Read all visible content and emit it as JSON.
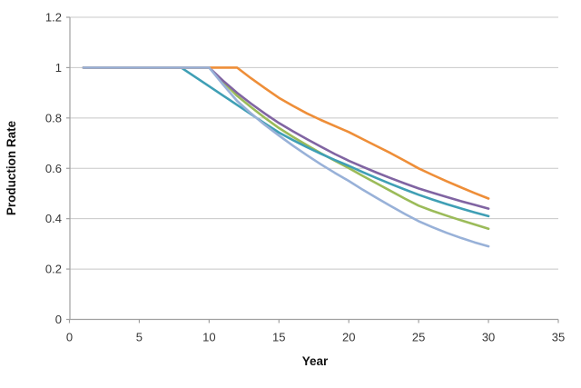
{
  "chart_data": {
    "type": "line",
    "title": "",
    "xlabel": "Year",
    "ylabel": "Production Rate",
    "xlim": [
      0,
      35
    ],
    "ylim": [
      0,
      1.2
    ],
    "x_ticks": [
      0,
      5,
      10,
      15,
      20,
      25,
      30,
      35
    ],
    "x_tick_labels": [
      "0",
      "5",
      "10",
      "15",
      "20",
      "25",
      "30",
      "35"
    ],
    "y_ticks": [
      0,
      0.2,
      0.4,
      0.6,
      0.8,
      1,
      1.2
    ],
    "y_tick_labels": [
      "0",
      "0.2",
      "0.4",
      "0.6",
      "0.8",
      "1",
      "1.2"
    ],
    "grid": "horizontal-only",
    "legend": "none",
    "plot_bg": "#ffffff",
    "series": [
      {
        "name": "series-green",
        "color": "#9BBB59",
        "decline_start_year": 10,
        "end_value": 0.36,
        "points": [
          [
            1,
            1
          ],
          [
            10,
            1
          ],
          [
            11,
            0.944
          ],
          [
            12,
            0.888
          ],
          [
            13,
            0.843
          ],
          [
            14,
            0.8
          ],
          [
            15,
            0.76
          ],
          [
            16,
            0.725
          ],
          [
            17,
            0.692
          ],
          [
            18,
            0.66
          ],
          [
            19,
            0.63
          ],
          [
            20,
            0.601
          ],
          [
            21,
            0.57
          ],
          [
            22,
            0.54
          ],
          [
            23,
            0.51
          ],
          [
            24,
            0.48
          ],
          [
            25,
            0.452
          ],
          [
            26,
            0.431
          ],
          [
            27,
            0.412
          ],
          [
            28,
            0.394
          ],
          [
            29,
            0.377
          ],
          [
            30,
            0.36
          ]
        ]
      },
      {
        "name": "series-teal",
        "color": "#3F9FB5",
        "decline_start_year": 8,
        "end_value": 0.41,
        "points": [
          [
            1,
            1
          ],
          [
            8,
            1
          ],
          [
            9,
            0.963
          ],
          [
            10,
            0.926
          ],
          [
            11,
            0.889
          ],
          [
            12,
            0.852
          ],
          [
            13,
            0.815
          ],
          [
            14,
            0.778
          ],
          [
            15,
            0.742
          ],
          [
            16,
            0.712
          ],
          [
            17,
            0.684
          ],
          [
            18,
            0.658
          ],
          [
            19,
            0.633
          ],
          [
            20,
            0.61
          ],
          [
            21,
            0.585
          ],
          [
            22,
            0.561
          ],
          [
            23,
            0.538
          ],
          [
            24,
            0.516
          ],
          [
            25,
            0.495
          ],
          [
            26,
            0.476
          ],
          [
            27,
            0.458
          ],
          [
            28,
            0.441
          ],
          [
            29,
            0.425
          ],
          [
            30,
            0.41
          ]
        ]
      },
      {
        "name": "series-purple",
        "color": "#8064A2",
        "decline_start_year": 10,
        "end_value": 0.44,
        "points": [
          [
            1,
            1
          ],
          [
            10,
            1
          ],
          [
            11,
            0.948
          ],
          [
            12,
            0.9
          ],
          [
            13,
            0.857
          ],
          [
            14,
            0.817
          ],
          [
            15,
            0.78
          ],
          [
            16,
            0.747
          ],
          [
            17,
            0.716
          ],
          [
            18,
            0.686
          ],
          [
            19,
            0.657
          ],
          [
            20,
            0.63
          ],
          [
            21,
            0.606
          ],
          [
            22,
            0.583
          ],
          [
            23,
            0.561
          ],
          [
            24,
            0.54
          ],
          [
            25,
            0.52
          ],
          [
            26,
            0.503
          ],
          [
            27,
            0.486
          ],
          [
            28,
            0.47
          ],
          [
            29,
            0.455
          ],
          [
            30,
            0.44
          ]
        ]
      },
      {
        "name": "series-orange",
        "color": "#EE8E38",
        "decline_start_year": 12,
        "end_value": 0.48,
        "points": [
          [
            1,
            1
          ],
          [
            12,
            1
          ],
          [
            13,
            0.958
          ],
          [
            14,
            0.918
          ],
          [
            15,
            0.88
          ],
          [
            16,
            0.848
          ],
          [
            17,
            0.818
          ],
          [
            18,
            0.792
          ],
          [
            19,
            0.768
          ],
          [
            20,
            0.744
          ],
          [
            21,
            0.716
          ],
          [
            22,
            0.688
          ],
          [
            23,
            0.66
          ],
          [
            24,
            0.63
          ],
          [
            25,
            0.6
          ],
          [
            26,
            0.574
          ],
          [
            27,
            0.549
          ],
          [
            28,
            0.525
          ],
          [
            29,
            0.502
          ],
          [
            30,
            0.48
          ]
        ]
      },
      {
        "name": "series-lightblue",
        "color": "#98B1D8",
        "decline_start_year": 10,
        "end_value": 0.29,
        "points": [
          [
            1,
            1
          ],
          [
            10,
            1
          ],
          [
            11,
            0.933
          ],
          [
            12,
            0.868
          ],
          [
            13,
            0.818
          ],
          [
            14,
            0.772
          ],
          [
            15,
            0.73
          ],
          [
            16,
            0.69
          ],
          [
            17,
            0.652
          ],
          [
            18,
            0.616
          ],
          [
            19,
            0.582
          ],
          [
            20,
            0.55
          ],
          [
            21,
            0.515
          ],
          [
            22,
            0.482
          ],
          [
            23,
            0.45
          ],
          [
            24,
            0.419
          ],
          [
            25,
            0.39
          ],
          [
            26,
            0.366
          ],
          [
            27,
            0.344
          ],
          [
            28,
            0.324
          ],
          [
            29,
            0.306
          ],
          [
            30,
            0.29
          ]
        ]
      }
    ]
  },
  "colors": {
    "gridline": "#C8C8C8",
    "axis_line": "#A0A0A0",
    "tick_text": "#353535",
    "title_text": "#111111",
    "background": "#ffffff"
  },
  "line_style": {
    "stroke_width": 2.6
  }
}
